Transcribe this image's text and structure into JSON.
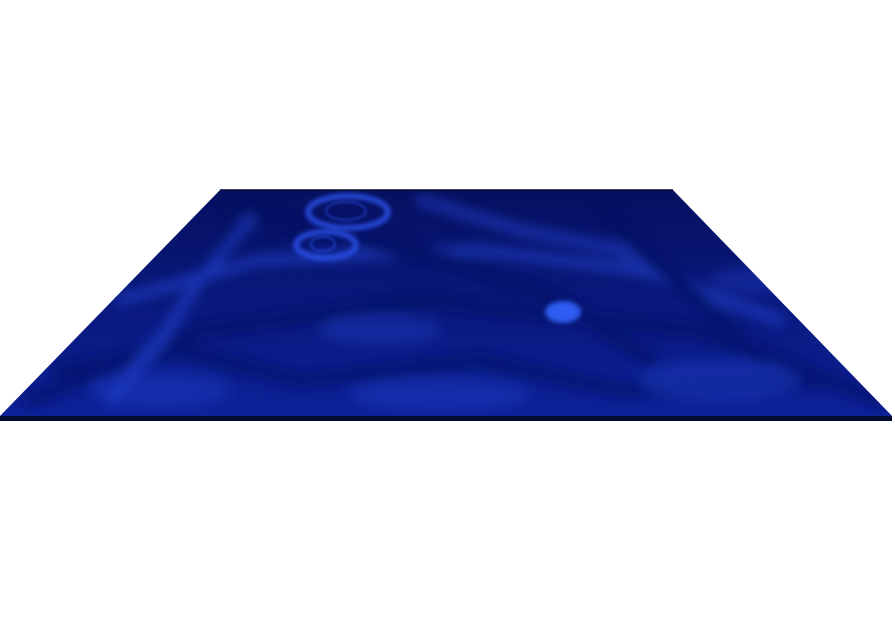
{
  "scene": {
    "background": "#ffffff",
    "plane": {
      "base_color": "#0d2299",
      "dark_color": "#061060",
      "edge_color": "#040a30",
      "highlight_color": "#2a4fe6"
    },
    "features": [
      {
        "kind": "double-ring",
        "color": "#2a4fe6"
      },
      {
        "kind": "ring",
        "color": "#2a4fe6"
      },
      {
        "kind": "blob",
        "color": "#2f5cf0"
      }
    ]
  }
}
